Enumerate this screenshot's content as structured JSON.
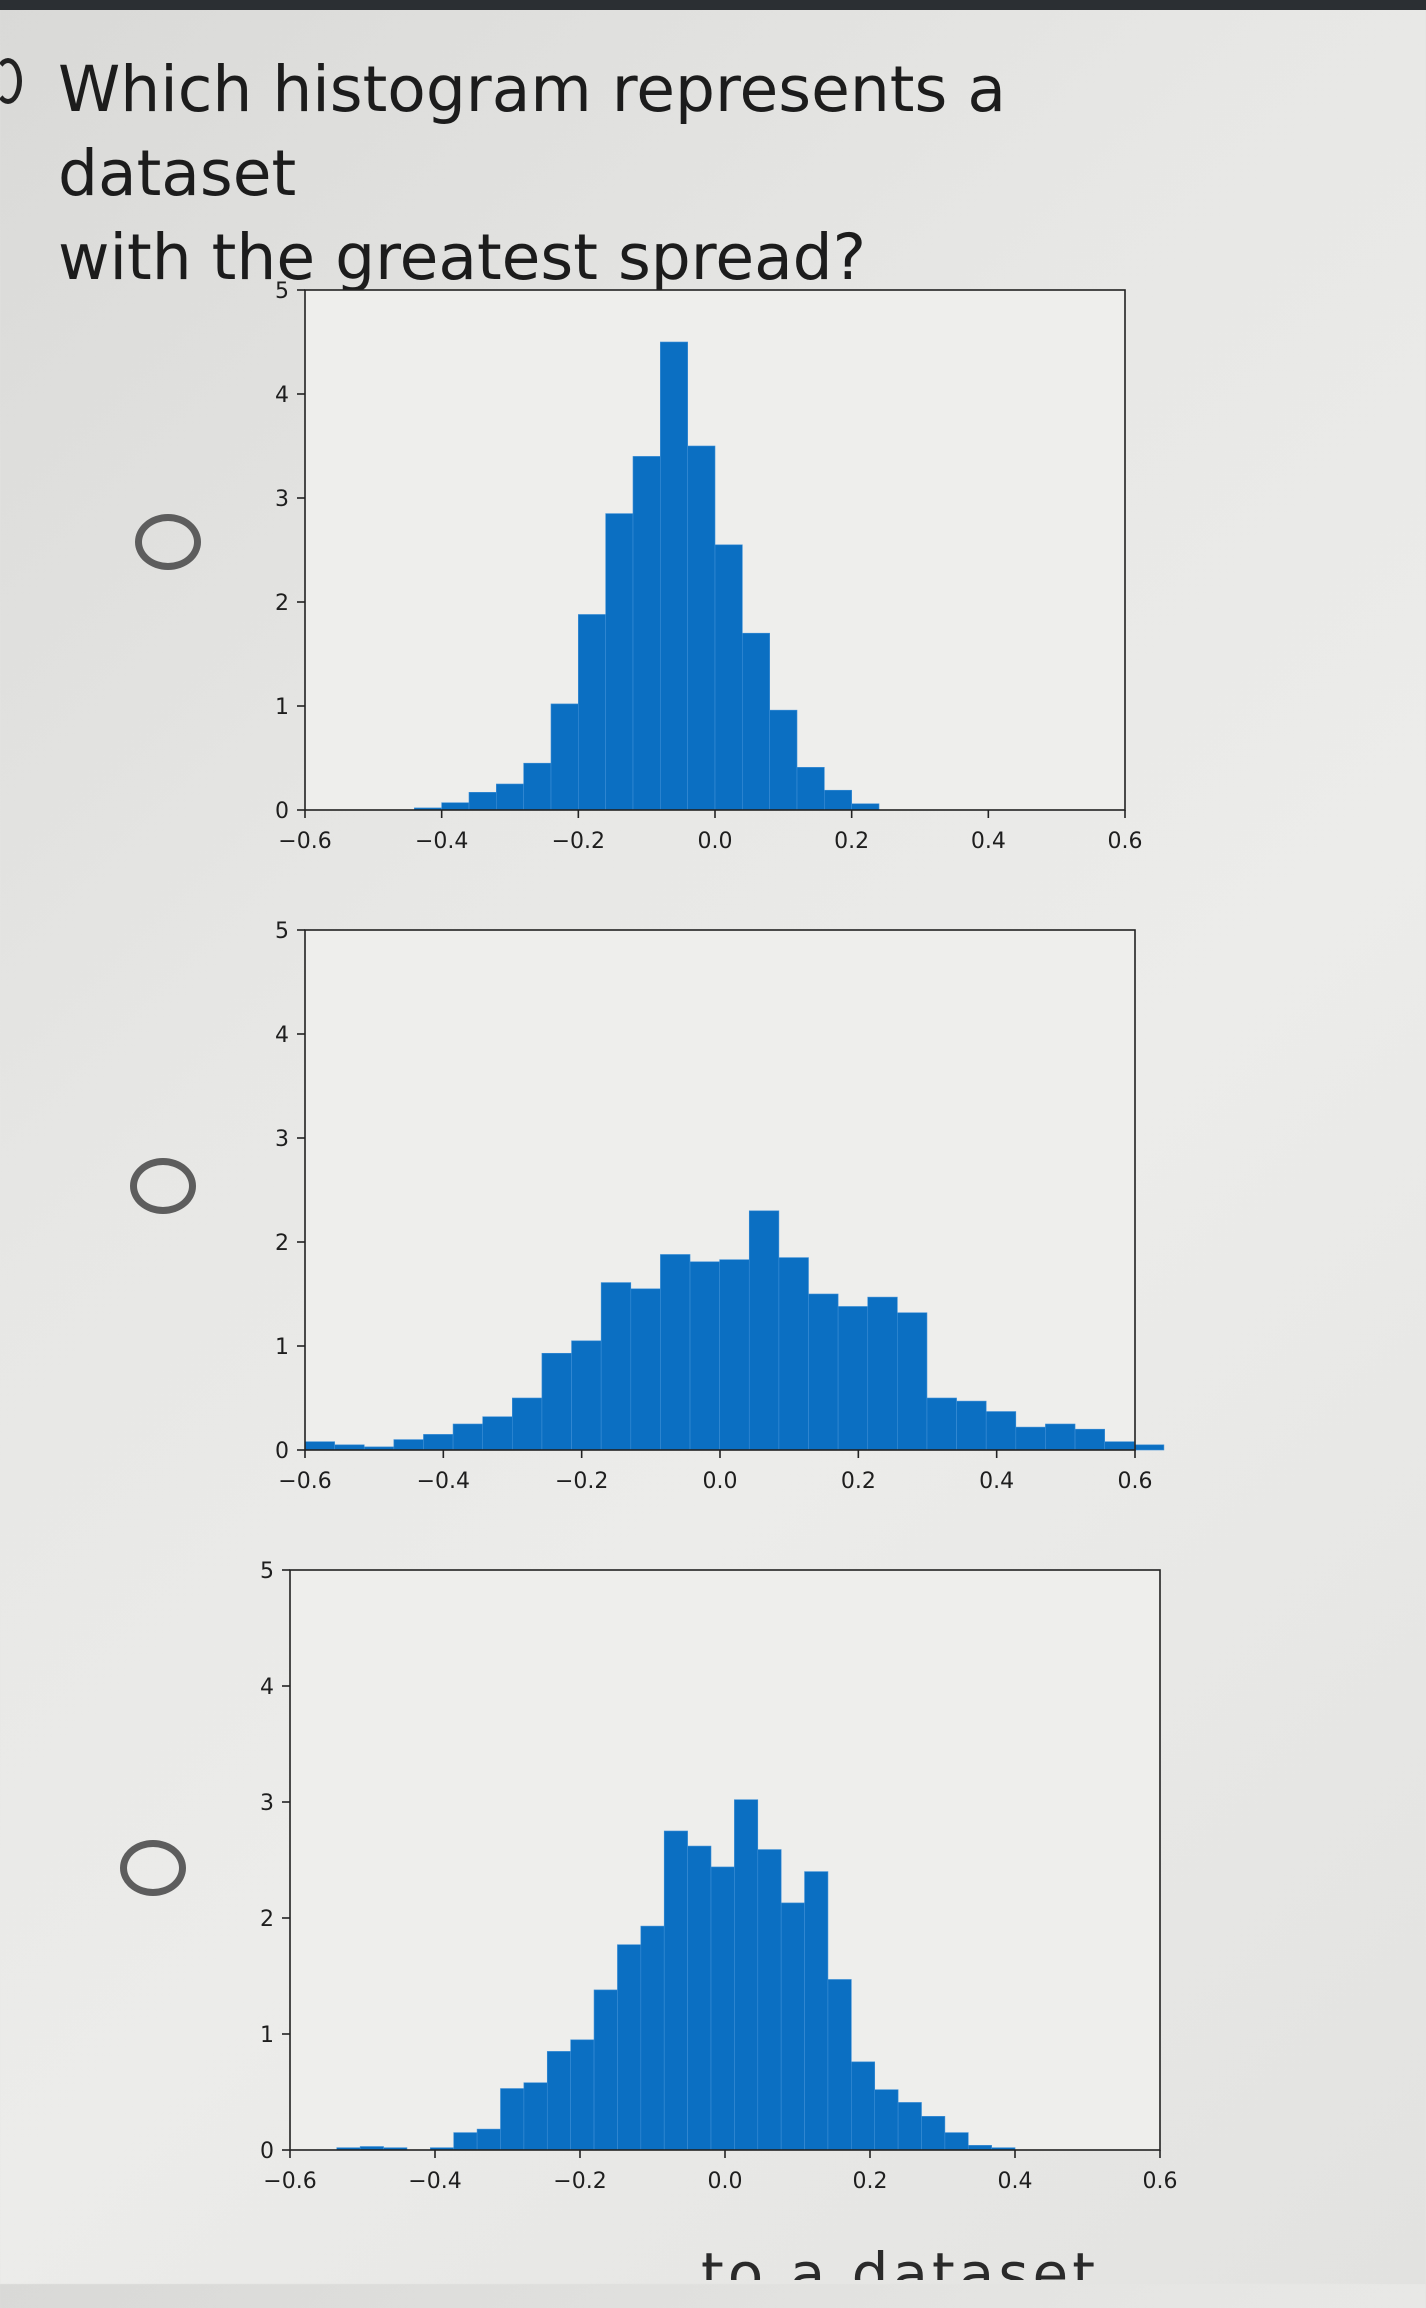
{
  "question": {
    "line1": "Which histogram represents a dataset",
    "line2": "with the greatest spread?"
  },
  "footer_fragment": "to a dataset",
  "colors": {
    "bar": "#0b6fc2",
    "axis": "#222222",
    "radio": "#5d5d5d"
  },
  "chart_data": [
    {
      "type": "bar",
      "title": "",
      "xlabel": "",
      "ylabel": "",
      "xlim": [
        -0.6,
        0.6
      ],
      "ylim": [
        0,
        5
      ],
      "x_ticks": [
        "−0.6",
        "−0.4",
        "−0.2",
        "0.0",
        "0.2",
        "0.4",
        "0.6"
      ],
      "y_ticks": [
        "0",
        "1",
        "2",
        "3",
        "4",
        "5"
      ],
      "bin_start": -0.6,
      "bin_width": 0.04,
      "values": [
        0,
        0,
        0,
        0,
        0.02,
        0.07,
        0.17,
        0.25,
        0.45,
        1.02,
        1.88,
        2.85,
        3.4,
        4.5,
        3.5,
        2.55,
        1.7,
        0.96,
        0.41,
        0.19,
        0.06,
        0,
        0,
        0,
        0,
        0,
        0,
        0,
        0,
        0
      ]
    },
    {
      "type": "bar",
      "title": "",
      "xlabel": "",
      "ylabel": "",
      "xlim": [
        -0.6,
        0.6
      ],
      "ylim": [
        0,
        5
      ],
      "x_ticks": [
        "−0.6",
        "−0.4",
        "−0.2",
        "0.0",
        "0.2",
        "0.4",
        "0.6"
      ],
      "y_ticks": [
        "0",
        "1",
        "2",
        "3",
        "4",
        "5"
      ],
      "bin_start": -0.6,
      "bin_width": 0.04282,
      "values": [
        0.08,
        0.05,
        0.03,
        0.1,
        0.15,
        0.25,
        0.32,
        0.5,
        0.93,
        1.05,
        1.61,
        1.55,
        1.88,
        1.81,
        1.83,
        2.3,
        1.85,
        1.5,
        1.38,
        1.47,
        1.32,
        0.5,
        0.47,
        0.37,
        0.22,
        0.25,
        0.2,
        0.08,
        0.05
      ]
    },
    {
      "type": "bar",
      "title": "",
      "xlabel": "",
      "ylabel": "",
      "xlim": [
        -0.6,
        0.6
      ],
      "ylim": [
        0,
        5
      ],
      "x_ticks": [
        "−0.6",
        "−0.4",
        "−0.2",
        "0.0",
        "0.2",
        "0.4",
        "0.6"
      ],
      "y_ticks": [
        "0",
        "1",
        "2",
        "3",
        "4",
        "5"
      ],
      "bin_start": -0.6,
      "bin_width": 0.03226,
      "values": [
        0,
        0,
        0.02,
        0.03,
        0.02,
        0,
        0.02,
        0.15,
        0.18,
        0.53,
        0.58,
        0.85,
        0.95,
        1.38,
        1.77,
        1.93,
        2.75,
        2.62,
        2.44,
        3.02,
        2.59,
        2.13,
        2.4,
        1.47,
        0.76,
        0.52,
        0.41,
        0.29,
        0.15,
        0.04,
        0.02,
        0
      ]
    }
  ]
}
